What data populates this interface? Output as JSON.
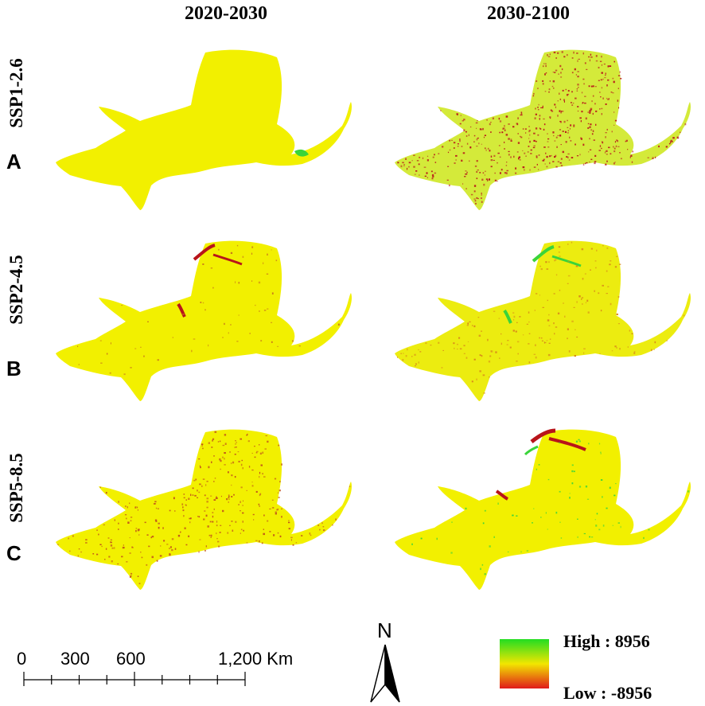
{
  "columns": [
    "2020-2030",
    "2030-2100"
  ],
  "rows": [
    {
      "letter": "A",
      "scenario": "SSP1-2.6"
    },
    {
      "letter": "B",
      "scenario": "SSP2-4.5"
    },
    {
      "letter": "C",
      "scenario": "SSP5-8.5"
    }
  ],
  "panels": [
    {
      "row": "A",
      "column": "2020-2030",
      "pattern": "uniform-yellow-with-small-green-patch-east"
    },
    {
      "row": "A",
      "column": "2030-2100",
      "pattern": "yellow-green-with-widespread-red-speckles"
    },
    {
      "row": "B",
      "column": "2020-2030",
      "pattern": "yellow-with-red-streaks-north"
    },
    {
      "row": "B",
      "column": "2030-2100",
      "pattern": "yellow-with-green-streaks-north"
    },
    {
      "row": "C",
      "column": "2020-2030",
      "pattern": "yellow-with-light-red-speckles"
    },
    {
      "row": "C",
      "column": "2030-2100",
      "pattern": "yellow-with-red-streaks-north"
    }
  ],
  "scale_bar": {
    "ticks": [
      "0",
      "300",
      "600",
      "1,200 Km"
    ]
  },
  "north_arrow": {
    "label": "N"
  },
  "legend": {
    "high_label": "High : 8956",
    "low_label": "Low : -8956",
    "colors": {
      "high": "#22dd22",
      "mid": "#f2e600",
      "low": "#e01a1a"
    }
  },
  "colors": {
    "region_fill": "#f2f000",
    "speckle_red": "#b8141a",
    "speckle_green": "#3ad43a"
  }
}
